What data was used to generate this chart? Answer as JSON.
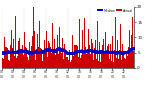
{
  "n_points": 1440,
  "ylim": [
    0,
    20
  ],
  "yticks": [
    0,
    5,
    10,
    15,
    20
  ],
  "background_color": "#ffffff",
  "bar_color": "#cc0000",
  "median_color": "#0000cc",
  "legend_actual_label": "Actual",
  "legend_median_label": "Median",
  "grid_color": "#aaaaaa",
  "seed": 42,
  "figsize": [
    1.6,
    0.87
  ],
  "dpi": 100
}
